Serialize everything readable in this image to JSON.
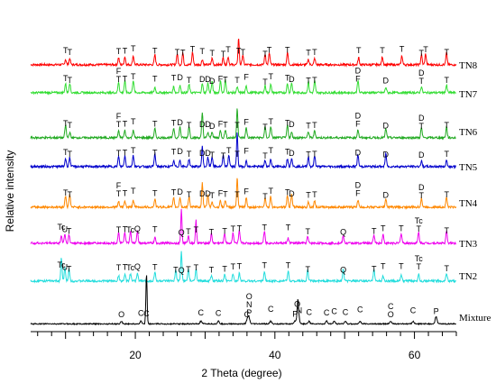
{
  "chart_data": {
    "type": "line",
    "title": "",
    "xlabel": "2 Theta (degree)",
    "ylabel": "Relative intensity",
    "xlim": [
      5,
      66
    ],
    "x_ticks": [
      20,
      40,
      60
    ],
    "grid": false,
    "legend": "labels at right end of each trace",
    "series": [
      {
        "name": "TN8",
        "color": "#ff0000"
      },
      {
        "name": "TN7",
        "color": "#33dd33"
      },
      {
        "name": "TN6",
        "color": "#22aa22"
      },
      {
        "name": "TN5",
        "color": "#0000cc"
      },
      {
        "name": "TN4",
        "color": "#ff8800"
      },
      {
        "name": "TN3",
        "color": "#ee00ee"
      },
      {
        "name": "TN2",
        "color": "#22dddd"
      },
      {
        "name": "Mixture",
        "color": "#000000"
      }
    ],
    "annotations": [
      {
        "series": "TN8",
        "marks": [
          {
            "x": 10.0,
            "t": "T"
          },
          {
            "x": 10.6,
            "t": "T"
          },
          {
            "x": 17.6,
            "t": "T"
          },
          {
            "x": 18.5,
            "t": "T"
          },
          {
            "x": 19.7,
            "t": "T"
          },
          {
            "x": 22.8,
            "t": "T"
          },
          {
            "x": 26.0,
            "t": "T"
          },
          {
            "x": 26.8,
            "t": "T"
          },
          {
            "x": 28.2,
            "t": "T"
          },
          {
            "x": 29.6,
            "t": "T"
          },
          {
            "x": 31.0,
            "t": "T"
          },
          {
            "x": 32.6,
            "t": "T"
          },
          {
            "x": 33.3,
            "t": "T"
          },
          {
            "x": 34.8,
            "t": "T"
          },
          {
            "x": 35.4,
            "t": "T"
          },
          {
            "x": 38.6,
            "t": "T"
          },
          {
            "x": 39.2,
            "t": "T"
          },
          {
            "x": 41.8,
            "t": "T"
          },
          {
            "x": 44.8,
            "t": "T"
          },
          {
            "x": 45.7,
            "t": "T"
          },
          {
            "x": 52.0,
            "t": "T"
          },
          {
            "x": 55.4,
            "t": "T"
          },
          {
            "x": 58.2,
            "t": "T"
          },
          {
            "x": 61.0,
            "t": "T"
          },
          {
            "x": 61.6,
            "t": "T"
          },
          {
            "x": 64.6,
            "t": "T"
          }
        ]
      },
      {
        "series": "TN7",
        "marks": [
          {
            "x": 10.0,
            "t": "T"
          },
          {
            "x": 10.6,
            "t": "T"
          },
          {
            "x": 17.6,
            "t": "T"
          },
          {
            "x": 17.6,
            "t": "F"
          },
          {
            "x": 18.5,
            "t": "T"
          },
          {
            "x": 19.7,
            "t": "T"
          },
          {
            "x": 22.8,
            "t": "T"
          },
          {
            "x": 25.5,
            "t": "T"
          },
          {
            "x": 26.4,
            "t": "D"
          },
          {
            "x": 27.7,
            "t": "T"
          },
          {
            "x": 29.6,
            "t": "D"
          },
          {
            "x": 30.4,
            "t": "D"
          },
          {
            "x": 31.0,
            "t": "D"
          },
          {
            "x": 32.2,
            "t": "F"
          },
          {
            "x": 32.9,
            "t": "T"
          },
          {
            "x": 34.6,
            "t": "T"
          },
          {
            "x": 35.9,
            "t": "F"
          },
          {
            "x": 38.6,
            "t": "T"
          },
          {
            "x": 39.4,
            "t": "T"
          },
          {
            "x": 41.8,
            "t": "T"
          },
          {
            "x": 42.4,
            "t": "D"
          },
          {
            "x": 44.8,
            "t": "T"
          },
          {
            "x": 45.7,
            "t": "T"
          },
          {
            "x": 51.9,
            "t": "F"
          },
          {
            "x": 51.9,
            "t": "D"
          },
          {
            "x": 55.9,
            "t": "D"
          },
          {
            "x": 61.0,
            "t": "T"
          },
          {
            "x": 61.0,
            "t": "D"
          },
          {
            "x": 64.6,
            "t": "T"
          }
        ]
      },
      {
        "series": "TN6",
        "marks": [
          {
            "x": 10.0,
            "t": "T"
          },
          {
            "x": 10.6,
            "t": "T"
          },
          {
            "x": 17.6,
            "t": "T"
          },
          {
            "x": 17.6,
            "t": "F"
          },
          {
            "x": 18.5,
            "t": "T"
          },
          {
            "x": 19.7,
            "t": "T"
          },
          {
            "x": 22.8,
            "t": "T"
          },
          {
            "x": 25.5,
            "t": "T"
          },
          {
            "x": 26.4,
            "t": "D"
          },
          {
            "x": 27.7,
            "t": "T"
          },
          {
            "x": 29.6,
            "t": "D"
          },
          {
            "x": 30.4,
            "t": "D"
          },
          {
            "x": 31.0,
            "t": "D"
          },
          {
            "x": 32.2,
            "t": "F"
          },
          {
            "x": 32.9,
            "t": "T"
          },
          {
            "x": 34.6,
            "t": "T"
          },
          {
            "x": 35.9,
            "t": "F"
          },
          {
            "x": 38.6,
            "t": "T"
          },
          {
            "x": 39.4,
            "t": "T"
          },
          {
            "x": 41.8,
            "t": "T"
          },
          {
            "x": 42.4,
            "t": "D"
          },
          {
            "x": 44.8,
            "t": "T"
          },
          {
            "x": 45.7,
            "t": "T"
          },
          {
            "x": 51.9,
            "t": "F"
          },
          {
            "x": 51.9,
            "t": "D"
          },
          {
            "x": 55.9,
            "t": "D"
          },
          {
            "x": 61.0,
            "t": "T"
          },
          {
            "x": 61.0,
            "t": "D"
          },
          {
            "x": 64.6,
            "t": "T"
          }
        ]
      },
      {
        "series": "TN5",
        "marks": [
          {
            "x": 10.0,
            "t": "T"
          },
          {
            "x": 10.6,
            "t": "T"
          },
          {
            "x": 17.6,
            "t": "T"
          },
          {
            "x": 18.5,
            "t": "T"
          },
          {
            "x": 19.7,
            "t": "T"
          },
          {
            "x": 22.8,
            "t": "T"
          },
          {
            "x": 25.5,
            "t": "T"
          },
          {
            "x": 26.4,
            "t": "D"
          },
          {
            "x": 27.7,
            "t": "T"
          },
          {
            "x": 29.6,
            "t": "D"
          },
          {
            "x": 30.4,
            "t": "D"
          },
          {
            "x": 31.0,
            "t": "T"
          },
          {
            "x": 32.6,
            "t": "T"
          },
          {
            "x": 33.4,
            "t": "T"
          },
          {
            "x": 34.6,
            "t": "T"
          },
          {
            "x": 35.9,
            "t": "F"
          },
          {
            "x": 38.6,
            "t": "T"
          },
          {
            "x": 39.4,
            "t": "T"
          },
          {
            "x": 41.8,
            "t": "T"
          },
          {
            "x": 42.4,
            "t": "D"
          },
          {
            "x": 44.8,
            "t": "T"
          },
          {
            "x": 45.7,
            "t": "T"
          },
          {
            "x": 51.9,
            "t": "D"
          },
          {
            "x": 55.9,
            "t": "D"
          },
          {
            "x": 61.0,
            "t": "D"
          },
          {
            "x": 64.6,
            "t": "T"
          }
        ]
      },
      {
        "series": "TN4",
        "marks": [
          {
            "x": 10.0,
            "t": "T"
          },
          {
            "x": 10.6,
            "t": "T"
          },
          {
            "x": 17.6,
            "t": "T"
          },
          {
            "x": 17.6,
            "t": "F"
          },
          {
            "x": 18.5,
            "t": "T"
          },
          {
            "x": 19.7,
            "t": "T"
          },
          {
            "x": 22.8,
            "t": "T"
          },
          {
            "x": 25.5,
            "t": "T"
          },
          {
            "x": 26.4,
            "t": "D"
          },
          {
            "x": 27.7,
            "t": "T"
          },
          {
            "x": 29.6,
            "t": "D"
          },
          {
            "x": 30.4,
            "t": "D"
          },
          {
            "x": 31.0,
            "t": "T"
          },
          {
            "x": 32.2,
            "t": "F"
          },
          {
            "x": 32.9,
            "t": "T"
          },
          {
            "x": 34.6,
            "t": "T"
          },
          {
            "x": 35.9,
            "t": "F"
          },
          {
            "x": 38.6,
            "t": "T"
          },
          {
            "x": 39.4,
            "t": "T"
          },
          {
            "x": 41.8,
            "t": "T"
          },
          {
            "x": 42.4,
            "t": "D"
          },
          {
            "x": 44.8,
            "t": "T"
          },
          {
            "x": 45.7,
            "t": "T"
          },
          {
            "x": 51.9,
            "t": "F"
          },
          {
            "x": 51.9,
            "t": "D"
          },
          {
            "x": 55.9,
            "t": "D"
          },
          {
            "x": 61.0,
            "t": "T"
          },
          {
            "x": 61.0,
            "t": "D"
          },
          {
            "x": 64.6,
            "t": "T"
          }
        ]
      },
      {
        "series": "TN3",
        "marks": [
          {
            "x": 9.4,
            "t": "Tc"
          },
          {
            "x": 10.5,
            "t": "T"
          },
          {
            "x": 9.9,
            "t": "U"
          },
          {
            "x": 17.6,
            "t": "T"
          },
          {
            "x": 18.5,
            "t": "T"
          },
          {
            "x": 19.3,
            "t": "Tc"
          },
          {
            "x": 20.3,
            "t": "Q"
          },
          {
            "x": 22.8,
            "t": "T"
          },
          {
            "x": 26.6,
            "t": "Q"
          },
          {
            "x": 27.6,
            "t": "T"
          },
          {
            "x": 28.7,
            "t": "T"
          },
          {
            "x": 30.9,
            "t": "T"
          },
          {
            "x": 32.8,
            "t": "T"
          },
          {
            "x": 34.0,
            "t": "T"
          },
          {
            "x": 34.9,
            "t": "T"
          },
          {
            "x": 38.5,
            "t": "T"
          },
          {
            "x": 41.9,
            "t": "T"
          },
          {
            "x": 44.7,
            "t": "T"
          },
          {
            "x": 49.8,
            "t": "Q"
          },
          {
            "x": 54.2,
            "t": "T"
          },
          {
            "x": 55.5,
            "t": "T"
          },
          {
            "x": 58.1,
            "t": "T"
          },
          {
            "x": 60.6,
            "t": "T"
          },
          {
            "x": 60.6,
            "t": "Tc"
          },
          {
            "x": 64.6,
            "t": "T"
          }
        ]
      },
      {
        "series": "TN2",
        "marks": [
          {
            "x": 9.4,
            "t": "Tc"
          },
          {
            "x": 10.5,
            "t": "T"
          },
          {
            "x": 9.9,
            "t": "U"
          },
          {
            "x": 17.6,
            "t": "T"
          },
          {
            "x": 18.5,
            "t": "T"
          },
          {
            "x": 19.3,
            "t": "Tc"
          },
          {
            "x": 20.3,
            "t": "Q"
          },
          {
            "x": 22.8,
            "t": "T"
          },
          {
            "x": 26.6,
            "t": "Q"
          },
          {
            "x": 25.8,
            "t": "T"
          },
          {
            "x": 27.6,
            "t": "T"
          },
          {
            "x": 28.7,
            "t": "T"
          },
          {
            "x": 30.9,
            "t": "T"
          },
          {
            "x": 32.8,
            "t": "T"
          },
          {
            "x": 34.0,
            "t": "T"
          },
          {
            "x": 34.9,
            "t": "T"
          },
          {
            "x": 38.5,
            "t": "T"
          },
          {
            "x": 41.9,
            "t": "T"
          },
          {
            "x": 44.7,
            "t": "T"
          },
          {
            "x": 49.8,
            "t": "Q"
          },
          {
            "x": 54.2,
            "t": "T"
          },
          {
            "x": 55.5,
            "t": "T"
          },
          {
            "x": 58.1,
            "t": "T"
          },
          {
            "x": 60.6,
            "t": "T"
          },
          {
            "x": 60.6,
            "t": "Tc"
          },
          {
            "x": 64.6,
            "t": "T"
          }
        ]
      },
      {
        "series": "Mixture",
        "marks": [
          {
            "x": 18.0,
            "t": "O"
          },
          {
            "x": 20.8,
            "t": "C"
          },
          {
            "x": 21.6,
            "t": "C"
          },
          {
            "x": 29.4,
            "t": "C"
          },
          {
            "x": 31.9,
            "t": "C"
          },
          {
            "x": 36.0,
            "t": "C"
          },
          {
            "x": 36.3,
            "t": "P"
          },
          {
            "x": 36.3,
            "t": "N"
          },
          {
            "x": 36.3,
            "t": "O"
          },
          {
            "x": 39.4,
            "t": "C"
          },
          {
            "x": 42.9,
            "t": "P"
          },
          {
            "x": 43.5,
            "t": "N"
          },
          {
            "x": 43.2,
            "t": "O"
          },
          {
            "x": 44.9,
            "t": "C"
          },
          {
            "x": 47.4,
            "t": "C"
          },
          {
            "x": 48.5,
            "t": "C"
          },
          {
            "x": 50.1,
            "t": "C"
          },
          {
            "x": 52.2,
            "t": "C"
          },
          {
            "x": 56.6,
            "t": "O"
          },
          {
            "x": 56.6,
            "t": "C"
          },
          {
            "x": 59.8,
            "t": "C"
          },
          {
            "x": 63.1,
            "t": "P"
          }
        ]
      }
    ]
  }
}
